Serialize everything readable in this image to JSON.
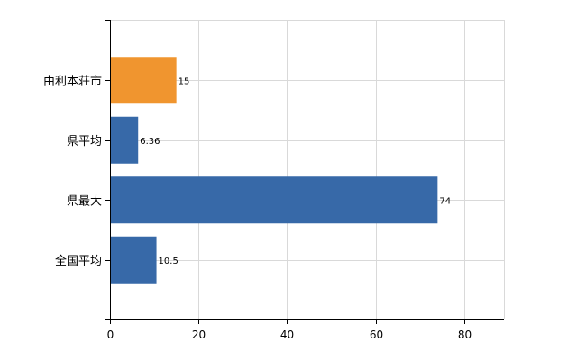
{
  "chart_data": {
    "type": "bar",
    "orientation": "horizontal",
    "categories": [
      "由利本荘市",
      "県平均",
      "県最大",
      "全国平均"
    ],
    "values": [
      15,
      6.36,
      74,
      10.5
    ],
    "value_labels": [
      "15",
      "6.36",
      "74",
      "10.5"
    ],
    "bar_colors": [
      "#f0952f",
      "#3769a8",
      "#3769a8",
      "#3769a8"
    ],
    "x_ticks": [
      0,
      20,
      40,
      60,
      80
    ],
    "xlim": [
      0,
      89
    ],
    "grid": true,
    "title": "",
    "xlabel": "",
    "ylabel": ""
  }
}
